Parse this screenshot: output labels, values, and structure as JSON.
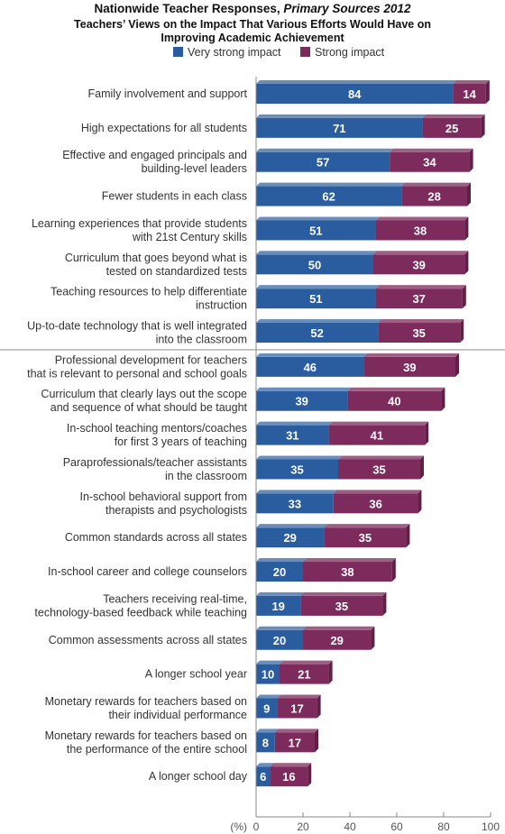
{
  "chart_data": {
    "type": "bar",
    "orientation": "horizontal",
    "stacked": true,
    "title_line1_main": "Nationwide Teacher Responses, ",
    "title_line1_italic": "Primary Sources 2012",
    "title_line2": "Teachers’ Views on the Impact That Various Efforts Would Have on",
    "title_line3": "Improving Academic Achievement",
    "x_unit_label": "(%)",
    "xlim": [
      0,
      100
    ],
    "xticks": [
      0,
      20,
      40,
      60,
      80,
      100
    ],
    "legend_placement": "top",
    "colors": {
      "very_strong": "#2a5d9f",
      "strong": "#7d2a5c"
    },
    "series": [
      {
        "name": "Very strong impact",
        "values": [
          84,
          71,
          57,
          62,
          51,
          50,
          51,
          52,
          46,
          39,
          31,
          35,
          33,
          29,
          20,
          19,
          20,
          10,
          9,
          8,
          6
        ]
      },
      {
        "name": "Strong impact",
        "values": [
          14,
          25,
          34,
          28,
          38,
          39,
          37,
          35,
          39,
          40,
          41,
          35,
          36,
          35,
          38,
          35,
          29,
          21,
          17,
          17,
          16
        ]
      }
    ],
    "categories": [
      [
        "Family involvement and support"
      ],
      [
        "High expectations for all students"
      ],
      [
        "Effective and engaged principals and",
        "building-level leaders"
      ],
      [
        "Fewer students in each class"
      ],
      [
        "Learning experiences that provide students",
        "with 21st Century skills"
      ],
      [
        "Curriculum that goes beyond what is",
        "tested on standardized tests"
      ],
      [
        "Teaching resources to help differentiate",
        "instruction"
      ],
      [
        "Up-to-date technology that is well integrated",
        "into the classroom"
      ],
      [
        "Professional development for teachers",
        "that is relevant to personal and school goals"
      ],
      [
        "Curriculum that clearly lays out the scope",
        "and sequence of what should be taught"
      ],
      [
        "In-school teaching mentors/coaches",
        "for first 3 years of teaching"
      ],
      [
        "Paraprofessionals/teacher assistants",
        "in the classroom"
      ],
      [
        "In-school behavioral support from",
        "therapists and psychologists"
      ],
      [
        "Common standards across all states"
      ],
      [
        "In-school career and college counselors"
      ],
      [
        "Teachers receiving real-time,",
        "technology-based feedback while teaching"
      ],
      [
        "Common assessments across all states"
      ],
      [
        "A longer school year"
      ],
      [
        "Monetary rewards for teachers based on",
        "their individual performance"
      ],
      [
        "Monetary rewards for teachers based on",
        "the performance of the entire school"
      ],
      [
        "A longer school day"
      ]
    ],
    "group_divider_after_index": 7
  }
}
